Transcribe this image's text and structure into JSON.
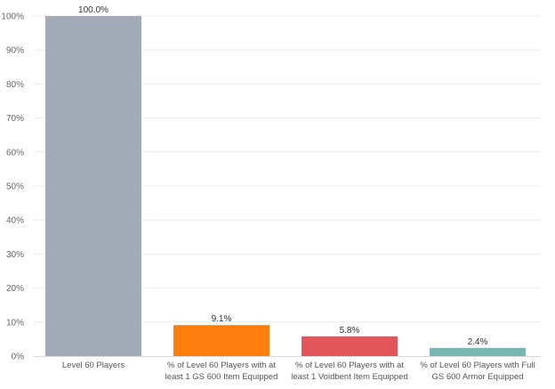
{
  "chart_data": {
    "type": "bar",
    "title": "",
    "xlabel": "",
    "ylabel": "",
    "ylim": [
      0,
      100
    ],
    "yticks": [
      "0%",
      "10%",
      "20%",
      "30%",
      "40%",
      "50%",
      "60%",
      "70%",
      "80%",
      "90%",
      "100%"
    ],
    "ytick_values": [
      0,
      10,
      20,
      30,
      40,
      50,
      60,
      70,
      80,
      90,
      100
    ],
    "grid": true,
    "categories": [
      [
        "Level 60 Players"
      ],
      [
        "% of Level 60 Players with at",
        "least 1 GS 600 Item Equipped"
      ],
      [
        "% of Level 60 Players with at",
        "least 1 Voidbent Item Equipped"
      ],
      [
        "% of Level 60 Players with Full",
        "GS 600 Armor Equipped"
      ]
    ],
    "values": [
      100.0,
      9.1,
      5.8,
      2.4
    ],
    "data_labels": [
      "100.0%",
      "9.1%",
      "5.8%",
      "2.4%"
    ],
    "colors": [
      "#a3abb7",
      "#ff7f0e",
      "#e15759",
      "#76b7b2"
    ]
  }
}
